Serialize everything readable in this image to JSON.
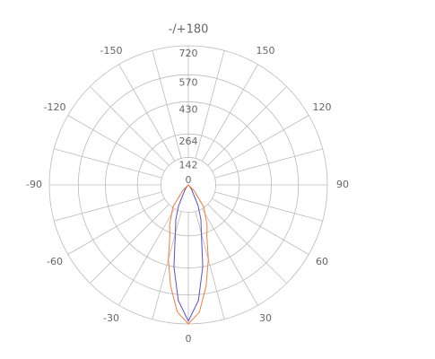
{
  "chart_data": {
    "type": "polar",
    "rlim": [
      0,
      720
    ],
    "rticks": [
      0,
      142,
      264,
      430,
      570,
      720
    ],
    "angle_ticks": [
      {
        "value": 180,
        "label": "-/+180"
      },
      -150,
      150,
      -120,
      120,
      -90,
      90,
      -60,
      60,
      -30,
      30,
      0
    ],
    "x": [
      -90,
      -60,
      -45,
      -35,
      -25,
      -20,
      -15,
      -10,
      -5,
      0,
      5,
      10,
      15,
      20,
      25,
      35,
      45,
      60,
      90
    ],
    "series": [
      {
        "color": "#5b4fc9",
        "values": [
          0,
          0,
          5,
          30,
          120,
          190,
          260,
          430,
          600,
          705,
          600,
          430,
          260,
          190,
          120,
          30,
          5,
          0,
          0
        ]
      },
      {
        "color": "#f07f3c",
        "values": [
          0,
          0,
          40,
          140,
          230,
          280,
          400,
          530,
          660,
          720,
          660,
          530,
          400,
          280,
          230,
          140,
          40,
          0,
          0
        ]
      }
    ]
  }
}
